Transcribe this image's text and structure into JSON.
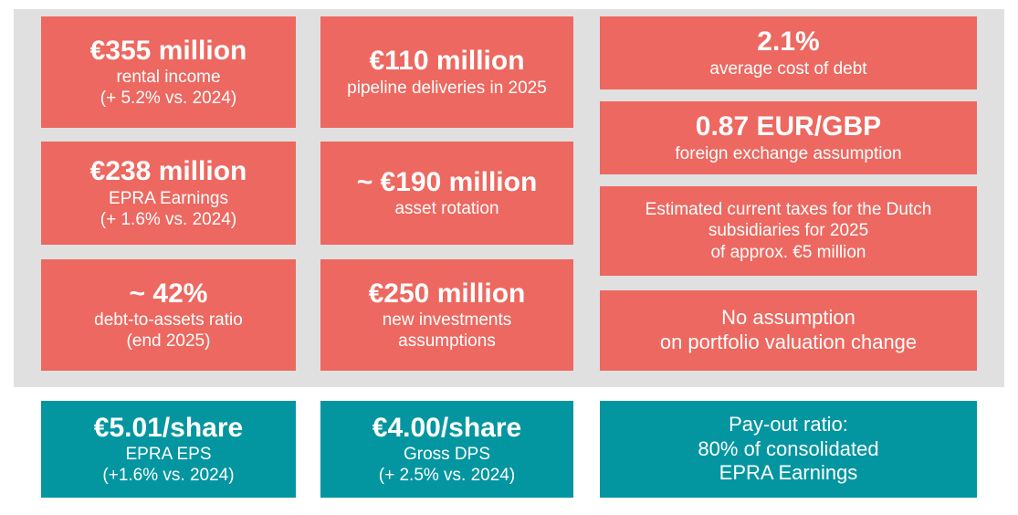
{
  "tiles": {
    "rental_income": {
      "headline": "€355 million",
      "lines": [
        "rental income",
        "(+ 5.2% vs. 2024)"
      ]
    },
    "epra_earnings": {
      "headline": "€238 million",
      "lines": [
        "EPRA Earnings",
        "(+ 1.6% vs. 2024)"
      ]
    },
    "debt_to_assets": {
      "headline": "~ 42%",
      "lines": [
        "debt-to-assets ratio",
        "(end 2025)"
      ]
    },
    "pipeline": {
      "headline": "€110 million",
      "lines": [
        "pipeline deliveries in 2025"
      ]
    },
    "asset_rotation": {
      "headline": "~ €190 million",
      "lines": [
        "asset rotation"
      ]
    },
    "new_investments": {
      "headline": "€250 million",
      "lines": [
        "new investments",
        "assumptions"
      ]
    },
    "cost_of_debt": {
      "headline": "2.1%",
      "lines": [
        "average cost of debt"
      ]
    },
    "fx": {
      "headline": "0.87 EUR/GBP",
      "lines": [
        "foreign exchange assumption"
      ]
    },
    "taxes": {
      "lines": [
        "Estimated current taxes for the Dutch",
        "subsidiaries for 2025",
        "of approx. €5 million"
      ]
    },
    "valuation": {
      "lines": [
        "No assumption",
        "on portfolio valuation change"
      ]
    },
    "epra_eps": {
      "headline": "€5.01/share",
      "lines": [
        "EPRA EPS",
        "(+1.6% vs. 2024)"
      ]
    },
    "gross_dps": {
      "headline": "€4.00/share",
      "lines": [
        "Gross DPS",
        "(+ 2.5% vs. 2024)"
      ]
    },
    "payout": {
      "lines": [
        "Pay-out ratio:",
        "80% of consolidated",
        "EPRA Earnings"
      ]
    }
  },
  "colors": {
    "tile_red": "#ed6860",
    "tile_teal": "#0496a0",
    "panel_grey": "#e0e0e0",
    "text": "#ffffff"
  }
}
